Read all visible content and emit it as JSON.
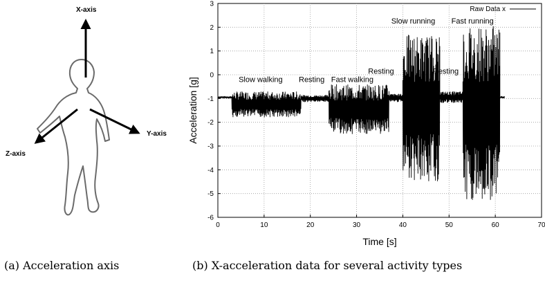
{
  "figure_a": {
    "caption": "(a) Acceleration axis",
    "axes": [
      "X-axis",
      "Y-axis",
      "Z-axis"
    ]
  },
  "figure_b": {
    "caption": "(b) X-acceleration data for several activity types"
  },
  "chart_data": {
    "type": "line",
    "xlabel": "Time [s]",
    "ylabel": "Acceleration [g]",
    "xlim": [
      0,
      70
    ],
    "ylim": [
      -6,
      3
    ],
    "xticks": [
      0,
      10,
      20,
      30,
      40,
      50,
      60,
      70
    ],
    "yticks": [
      -6,
      -5,
      -4,
      -3,
      -2,
      -1,
      0,
      1,
      2,
      3
    ],
    "grid": true,
    "legend_position": "top-right",
    "series": [
      {
        "name": "Raw Data x",
        "color": "#000000",
        "segments": [
          {
            "x_start": 0,
            "x_end": 3,
            "min": -1.0,
            "max": -0.9
          },
          {
            "x_start": 3,
            "x_end": 18,
            "min": -1.8,
            "max": -0.7
          },
          {
            "x_start": 18,
            "x_end": 24,
            "min": -1.15,
            "max": -0.85
          },
          {
            "x_start": 24,
            "x_end": 37,
            "min": -2.5,
            "max": -0.4
          },
          {
            "x_start": 37,
            "x_end": 40,
            "min": -1.15,
            "max": -0.8
          },
          {
            "x_start": 40,
            "x_end": 48,
            "min": -4.5,
            "max": 1.7
          },
          {
            "x_start": 48,
            "x_end": 53,
            "min": -1.2,
            "max": -0.7
          },
          {
            "x_start": 53,
            "x_end": 61,
            "min": -5.3,
            "max": 2.1
          },
          {
            "x_start": 61,
            "x_end": 62,
            "min": -1.0,
            "max": -0.9
          }
        ]
      }
    ],
    "annotations": [
      {
        "text": "Slow walking",
        "x": 4.5,
        "y": -0.3
      },
      {
        "text": "Resting",
        "x": 17.5,
        "y": -0.3
      },
      {
        "text": "Fast walking",
        "x": 24.5,
        "y": -0.3
      },
      {
        "text": "Resting",
        "x": 32.5,
        "y": 0.05
      },
      {
        "text": "Slow running",
        "x": 37.5,
        "y": 2.15
      },
      {
        "text": "Resting",
        "x": 46.5,
        "y": 0.05
      },
      {
        "text": "Fast running",
        "x": 50.5,
        "y": 2.15
      }
    ]
  }
}
